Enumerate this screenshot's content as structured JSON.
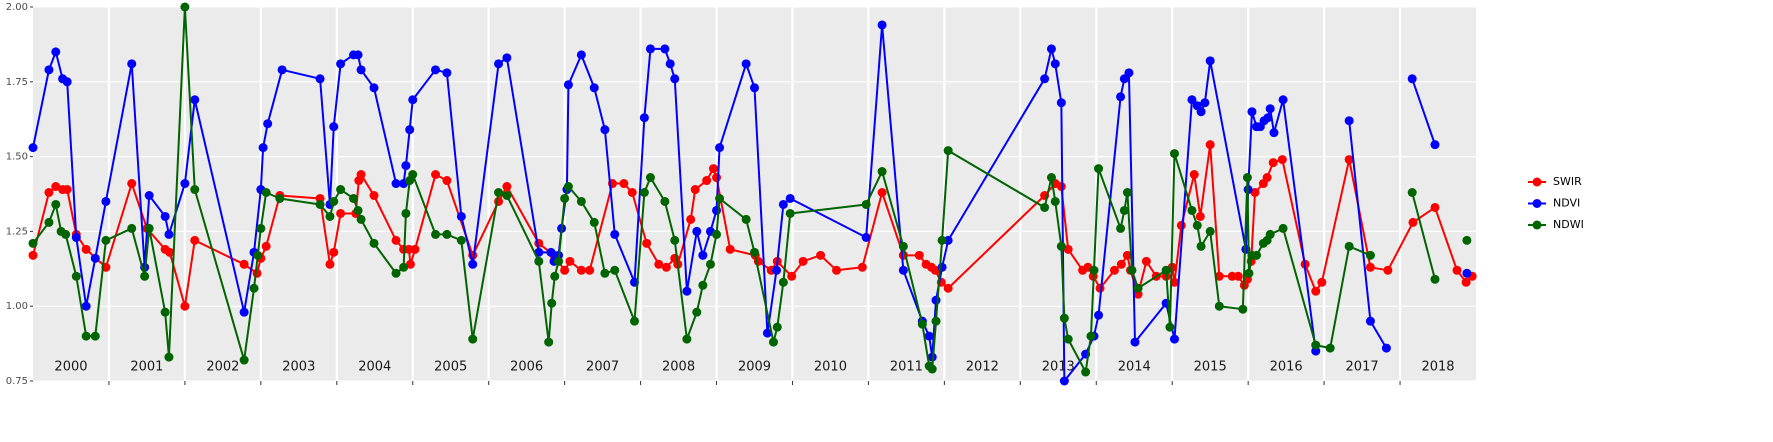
{
  "chart_data": {
    "type": "line",
    "xlim": [
      2000,
      2019
    ],
    "ylim": [
      0.75,
      2.0
    ],
    "yticks": [
      {
        "value": 0.75,
        "label": "0.75"
      },
      {
        "value": 1.0,
        "label": "1.00"
      },
      {
        "value": 1.25,
        "label": "1.25"
      },
      {
        "value": 1.5,
        "label": "1.50"
      },
      {
        "value": 1.75,
        "label": "1.75"
      },
      {
        "value": 2.0,
        "label": "2.00"
      }
    ],
    "xticks": [
      {
        "value": 2000.5,
        "label": "2000"
      },
      {
        "value": 2001.5,
        "label": "2001"
      },
      {
        "value": 2002.5,
        "label": "2002"
      },
      {
        "value": 2003.5,
        "label": "2003"
      },
      {
        "value": 2004.5,
        "label": "2004"
      },
      {
        "value": 2005.5,
        "label": "2005"
      },
      {
        "value": 2006.5,
        "label": "2006"
      },
      {
        "value": 2007.5,
        "label": "2007"
      },
      {
        "value": 2008.5,
        "label": "2008"
      },
      {
        "value": 2009.5,
        "label": "2009"
      },
      {
        "value": 2010.5,
        "label": "2010"
      },
      {
        "value": 2011.5,
        "label": "2011"
      },
      {
        "value": 2012.5,
        "label": "2012"
      },
      {
        "value": 2013.5,
        "label": "2013"
      },
      {
        "value": 2014.5,
        "label": "2014"
      },
      {
        "value": 2015.5,
        "label": "2015"
      },
      {
        "value": 2016.5,
        "label": "2016"
      },
      {
        "value": 2017.5,
        "label": "2017"
      },
      {
        "value": 2018.5,
        "label": "2018"
      }
    ],
    "xgrid": [
      2001,
      2002,
      2003,
      2004,
      2005,
      2006,
      2007,
      2008,
      2009,
      2010,
      2011,
      2012,
      2013,
      2014,
      2015,
      2016,
      2017,
      2018
    ],
    "grid": true,
    "legend": "right",
    "series": [
      {
        "name": "SWIR",
        "color": "#ff0000",
        "x": [
          2000.0,
          2000.21,
          2000.3,
          2000.39,
          2000.45,
          2000.57,
          2000.7,
          2000.96,
          2001.3,
          2001.5,
          2001.74,
          2001.8,
          2002.0,
          2002.13,
          2002.78,
          2002.95,
          2003.0,
          2003.07,
          2003.25,
          2003.78,
          2003.91,
          2003.96,
          2004.05,
          2004.25,
          2004.29,
          2004.32,
          2004.49,
          2004.78,
          2004.88,
          2004.95,
          2004.97,
          2005.03,
          2005.3,
          2005.45,
          2005.79,
          2006.13,
          2006.24,
          2006.66,
          2006.86,
          2007.0,
          2007.07,
          2007.22,
          2007.33,
          2007.63,
          2007.78,
          2007.89,
          2008.08,
          2008.24,
          2008.34,
          2008.45,
          2008.49,
          2008.66,
          2008.72,
          2008.87,
          2008.96,
          2009.0,
          2009.18,
          2009.51,
          2009.55,
          2009.72,
          2009.8,
          2009.99,
          2010.14,
          2010.37,
          2010.58,
          2010.92,
          2011.18,
          2011.46,
          2011.67,
          2011.76,
          2011.83,
          2011.88,
          2011.96,
          2012.05,
          2013.32,
          2013.46,
          2013.54,
          2013.63,
          2013.82,
          2013.89,
          2013.96,
          2014.05,
          2014.24,
          2014.33,
          2014.41,
          2014.45,
          2014.55,
          2014.66,
          2014.79,
          2014.92,
          2015.0,
          2015.03,
          2015.12,
          2015.29,
          2015.37,
          2015.5,
          2015.62,
          2015.79,
          2015.87,
          2015.95,
          2015.99,
          2016.04,
          2016.09,
          2016.2,
          2016.25,
          2016.33,
          2016.45,
          2016.75,
          2016.89,
          2016.97,
          2017.33,
          2017.61,
          2017.84,
          2018.17,
          2018.46,
          2018.75,
          2018.87,
          2018.95
        ],
        "values": [
          1.17,
          1.38,
          1.4,
          1.39,
          1.39,
          1.24,
          1.19,
          1.13,
          1.41,
          1.26,
          1.19,
          1.18,
          1.0,
          1.22,
          1.14,
          1.11,
          1.16,
          1.2,
          1.37,
          1.36,
          1.14,
          1.18,
          1.31,
          1.31,
          1.42,
          1.44,
          1.37,
          1.22,
          1.19,
          1.19,
          1.14,
          1.19,
          1.44,
          1.42,
          1.17,
          1.35,
          1.4,
          1.21,
          1.17,
          1.12,
          1.15,
          1.12,
          1.12,
          1.41,
          1.41,
          1.38,
          1.21,
          1.14,
          1.13,
          1.16,
          1.14,
          1.29,
          1.39,
          1.42,
          1.46,
          1.43,
          1.19,
          1.17,
          1.15,
          1.12,
          1.15,
          1.1,
          1.15,
          1.17,
          1.12,
          1.13,
          1.38,
          1.17,
          1.17,
          1.14,
          1.13,
          1.12,
          1.08,
          1.06,
          1.37,
          1.41,
          1.4,
          1.19,
          1.12,
          1.13,
          1.1,
          1.06,
          1.12,
          1.14,
          1.17,
          1.12,
          1.04,
          1.15,
          1.1,
          1.1,
          1.13,
          1.08,
          1.27,
          1.44,
          1.3,
          1.54,
          1.1,
          1.1,
          1.1,
          1.07,
          1.09,
          1.15,
          1.38,
          1.41,
          1.43,
          1.48,
          1.49,
          1.14,
          1.05,
          1.08,
          1.49,
          1.13,
          1.12,
          1.28,
          1.33,
          1.12,
          1.08,
          1.1
        ]
      },
      {
        "name": "NDVI",
        "color": "#0000ff",
        "x": [
          2000.0,
          2000.21,
          2000.3,
          2000.39,
          2000.45,
          2000.57,
          2000.7,
          2000.82,
          2000.96,
          2001.3,
          2001.47,
          2001.53,
          2001.74,
          2001.79,
          2002.0,
          2002.13,
          2002.78,
          2002.91,
          2003.0,
          2003.03,
          2003.09,
          2003.28,
          2003.78,
          2003.91,
          2003.96,
          2004.05,
          2004.22,
          2004.28,
          2004.32,
          2004.49,
          2004.78,
          2004.88,
          2004.91,
          2004.96,
          2005.0,
          2005.3,
          2005.45,
          2005.64,
          2005.79,
          2006.13,
          2006.24,
          2006.66,
          2006.82,
          2006.86,
          2006.92,
          2006.96,
          2007.03,
          2007.05,
          2007.22,
          2007.39,
          2007.53,
          2007.66,
          2007.92,
          2008.05,
          2008.13,
          2008.32,
          2008.39,
          2008.45,
          2008.61,
          2008.74,
          2008.82,
          2008.92,
          2009.0,
          2009.04,
          2009.39,
          2009.5,
          2009.67,
          2009.79,
          2009.88,
          2009.97,
          2010.97,
          2011.18,
          2011.46,
          2011.71,
          2011.8,
          2011.84,
          2011.89,
          2011.97,
          2012.05,
          2013.32,
          2013.41,
          2013.46,
          2013.54,
          2013.58,
          2013.86,
          2013.97,
          2014.03,
          2014.32,
          2014.37,
          2014.43,
          2014.51,
          2014.92,
          2015.03,
          2015.26,
          2015.33,
          2015.38,
          2015.43,
          2015.5,
          2015.97,
          2016.0,
          2016.05,
          2016.11,
          2016.16,
          2016.21,
          2016.26,
          2016.29,
          2016.34,
          2016.46,
          2016.89,
          null,
          2017.33,
          2017.61,
          2017.82,
          null,
          2018.16,
          2018.46,
          null,
          2018.88
        ],
        "values": [
          1.53,
          1.79,
          1.85,
          1.76,
          1.75,
          1.23,
          1.0,
          1.16,
          1.35,
          1.81,
          1.13,
          1.37,
          1.3,
          1.24,
          1.41,
          1.69,
          0.98,
          1.18,
          1.39,
          1.53,
          1.61,
          1.79,
          1.76,
          1.34,
          1.6,
          1.81,
          1.84,
          1.84,
          1.79,
          1.73,
          1.41,
          1.41,
          1.47,
          1.59,
          1.69,
          1.79,
          1.78,
          1.3,
          1.14,
          1.81,
          1.83,
          1.18,
          1.18,
          1.15,
          1.17,
          1.26,
          1.39,
          1.74,
          1.84,
          1.73,
          1.59,
          1.24,
          1.08,
          1.63,
          1.86,
          1.86,
          1.81,
          1.76,
          1.05,
          1.25,
          1.17,
          1.25,
          1.32,
          1.53,
          1.81,
          1.73,
          0.91,
          1.12,
          1.34,
          1.36,
          1.23,
          1.94,
          1.12,
          0.95,
          0.9,
          0.83,
          1.02,
          1.13,
          1.22,
          1.76,
          1.86,
          1.81,
          1.68,
          0.75,
          0.84,
          0.9,
          0.97,
          1.7,
          1.76,
          1.78,
          0.88,
          1.01,
          0.89,
          1.69,
          1.67,
          1.65,
          1.68,
          1.82,
          1.19,
          1.39,
          1.65,
          1.6,
          1.6,
          1.62,
          1.63,
          1.66,
          1.58,
          1.69,
          0.85,
          null,
          1.62,
          0.95,
          0.86,
          null,
          1.76,
          1.54,
          null,
          1.11
        ]
      },
      {
        "name": "NDWI",
        "color": "#006400",
        "x": [
          2000.0,
          2000.21,
          2000.3,
          2000.37,
          2000.43,
          2000.57,
          2000.7,
          2000.82,
          2000.96,
          2001.3,
          2001.47,
          2001.53,
          2001.74,
          2001.79,
          2002.0,
          2002.13,
          2002.78,
          2002.91,
          2002.96,
          2003.0,
          2003.07,
          2003.25,
          2003.78,
          2003.91,
          2003.96,
          2004.05,
          2004.22,
          2004.28,
          2004.32,
          2004.49,
          2004.78,
          2004.88,
          2004.91,
          2004.96,
          2005.0,
          2005.3,
          2005.45,
          2005.64,
          2005.79,
          2006.13,
          2006.24,
          2006.66,
          2006.79,
          2006.83,
          2006.87,
          2006.92,
          2007.0,
          2007.05,
          2007.22,
          2007.39,
          2007.53,
          2007.66,
          2007.92,
          2008.05,
          2008.13,
          2008.32,
          2008.45,
          2008.61,
          2008.74,
          2008.82,
          2008.92,
          2009.0,
          2009.04,
          2009.39,
          2009.5,
          2009.75,
          2009.8,
          2009.88,
          2009.97,
          2010.97,
          2011.18,
          2011.46,
          2011.71,
          2011.8,
          2011.84,
          2011.89,
          2011.97,
          2012.05,
          2013.32,
          2013.41,
          2013.46,
          2013.54,
          2013.58,
          2013.63,
          2013.86,
          2013.93,
          2013.97,
          2014.03,
          2014.32,
          2014.37,
          2014.41,
          2014.47,
          2014.55,
          2014.92,
          2014.97,
          2015.03,
          2015.26,
          2015.33,
          2015.38,
          2015.5,
          2015.62,
          2015.93,
          2015.99,
          2016.01,
          2016.05,
          2016.11,
          2016.2,
          2016.25,
          2016.29,
          2016.46,
          2016.89,
          2017.08,
          2017.33,
          2017.61,
          null,
          2018.16,
          2018.46,
          null,
          2018.88
        ],
        "values": [
          1.21,
          1.28,
          1.34,
          1.25,
          1.24,
          1.1,
          0.9,
          0.9,
          1.22,
          1.26,
          1.1,
          1.26,
          0.98,
          0.83,
          2.0,
          1.39,
          0.82,
          1.06,
          1.17,
          1.26,
          1.38,
          1.36,
          1.34,
          1.3,
          1.35,
          1.39,
          1.36,
          1.32,
          1.29,
          1.21,
          1.11,
          1.13,
          1.31,
          1.42,
          1.44,
          1.24,
          1.24,
          1.22,
          0.89,
          1.38,
          1.37,
          1.15,
          0.88,
          1.01,
          1.1,
          1.15,
          1.36,
          1.4,
          1.35,
          1.28,
          1.11,
          1.12,
          0.95,
          1.38,
          1.43,
          1.35,
          1.22,
          0.89,
          0.98,
          1.07,
          1.14,
          1.24,
          1.36,
          1.29,
          1.18,
          0.88,
          0.93,
          1.08,
          1.31,
          1.34,
          1.45,
          1.2,
          0.94,
          0.8,
          0.79,
          0.95,
          1.22,
          1.52,
          1.33,
          1.43,
          1.35,
          1.2,
          0.96,
          0.89,
          0.78,
          0.9,
          1.12,
          1.46,
          1.26,
          1.32,
          1.38,
          1.12,
          1.06,
          1.12,
          0.93,
          1.51,
          1.32,
          1.27,
          1.2,
          1.25,
          1.0,
          0.99,
          1.43,
          1.11,
          1.17,
          1.17,
          1.21,
          1.22,
          1.24,
          1.26,
          0.87,
          0.86,
          1.2,
          1.17,
          null,
          1.38,
          1.09,
          null,
          1.22
        ]
      }
    ]
  }
}
